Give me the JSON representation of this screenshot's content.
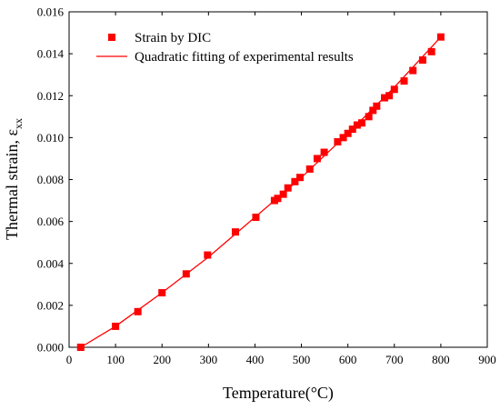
{
  "chart_data": {
    "type": "scatter",
    "title": "",
    "xlabel": "Temperature(°C)",
    "ylabel_main": "Thermal strain, ε",
    "ylabel_sub": "xx",
    "xlim": [
      0,
      900
    ],
    "ylim": [
      0,
      0.016
    ],
    "x_ticks": [
      0,
      100,
      200,
      300,
      400,
      500,
      600,
      700,
      800,
      900
    ],
    "x_tick_labels": [
      "0",
      "100",
      "200",
      "300",
      "400",
      "500",
      "600",
      "700",
      "800",
      "900"
    ],
    "y_ticks": [
      0,
      0.002,
      0.004,
      0.006,
      0.008,
      0.01,
      0.012,
      0.014,
      0.016
    ],
    "y_tick_labels": [
      "0.000",
      "0.002",
      "0.004",
      "0.006",
      "0.008",
      "0.010",
      "0.012",
      "0.014",
      "0.016"
    ],
    "grid": false,
    "legend_position": "top-left",
    "series": [
      {
        "name": "Strain by DIC",
        "kind": "markers",
        "marker": "square",
        "color": "#ff0000",
        "x": [
          25,
          100,
          148,
          200,
          252,
          298,
          358,
          402,
          442,
          449,
          461,
          471,
          486,
          497,
          518,
          534,
          549,
          578,
          590,
          600,
          610,
          620,
          630,
          645,
          654,
          662,
          679,
          689,
          700,
          721,
          740,
          761,
          780,
          800
        ],
        "y": [
          0.0,
          0.001,
          0.0017,
          0.0026,
          0.0035,
          0.0044,
          0.0055,
          0.0062,
          0.007,
          0.0071,
          0.0073,
          0.0076,
          0.0079,
          0.0081,
          0.0085,
          0.009,
          0.0093,
          0.0098,
          0.01,
          0.0102,
          0.0104,
          0.0106,
          0.0107,
          0.011,
          0.0113,
          0.0115,
          0.0119,
          0.012,
          0.0123,
          0.0127,
          0.0132,
          0.0137,
          0.0141,
          0.0148
        ]
      },
      {
        "name": "Quadratic fitting of experimental results",
        "kind": "line",
        "color": "#ff0000",
        "x": [
          25,
          100,
          200,
          300,
          400,
          500,
          600,
          700,
          800
        ],
        "y": [
          0.0,
          0.001,
          0.0026,
          0.0043,
          0.0062,
          0.0081,
          0.0102,
          0.0124,
          0.0148
        ]
      }
    ]
  }
}
